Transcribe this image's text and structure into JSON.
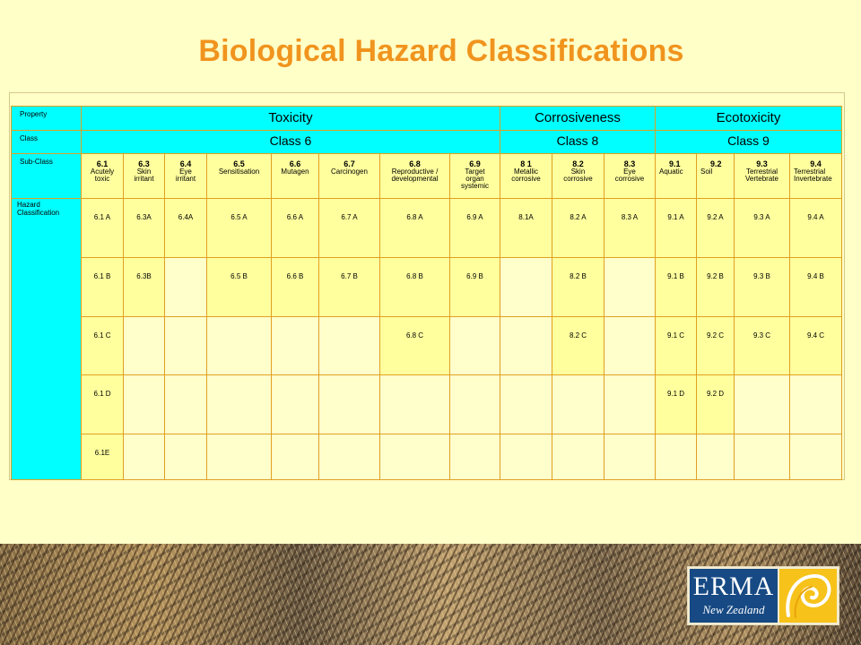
{
  "title": "Biological Hazard Classifications",
  "table": {
    "row_labels": {
      "property": "Property",
      "class": "Class",
      "subclass": "Sub-Class",
      "hazard": "Hazard\nClassification"
    },
    "groups": {
      "toxicity": "Toxicity",
      "corrosiveness": "Corrosiveness",
      "ecotoxicity": "Ecotoxicity"
    },
    "classes": {
      "class6": "Class 6",
      "class8": "Class 8",
      "class9": "Class 9"
    },
    "subclasses": [
      {
        "code": "6.1",
        "name": "Acutely\ntoxic"
      },
      {
        "code": "6.3",
        "name": "Skin\nirritant"
      },
      {
        "code": "6.4",
        "name": "Eye\nirritant"
      },
      {
        "code": "6.5",
        "name": "Sensitisation"
      },
      {
        "code": "6.6",
        "name": "Mutagen"
      },
      {
        "code": "6.7",
        "name": "Carcinogen"
      },
      {
        "code": "6.8",
        "name": "Reproductive /\ndevelopmental"
      },
      {
        "code": "6.9",
        "name": "Target\norgan\nsystemic"
      },
      {
        "code": "8 1",
        "name": "Metallic\ncorrosive"
      },
      {
        "code": "8.2",
        "name": "Skin\ncorrosive"
      },
      {
        "code": "8.3",
        "name": "Eye\ncorrosive"
      },
      {
        "code": "9.1",
        "name": "Aquatic"
      },
      {
        "code": "9.2",
        "name": "Soil"
      },
      {
        "code": "9.3",
        "name": "Terrestrial\nVertebrate"
      },
      {
        "code": "9.4",
        "name": "Terrestrial\nInvertebrate"
      }
    ],
    "hazard_rows": [
      [
        "6.1 A",
        "6.3A",
        "6.4A",
        "6.5 A",
        "6.6 A",
        "6.7 A",
        "6.8 A",
        "6.9 A",
        "8.1A",
        "8.2 A",
        "8.3 A",
        "9.1 A",
        "9.2 A",
        "9.3 A",
        "9.4 A"
      ],
      [
        "6.1 B",
        "6.3B",
        "",
        "6.5 B",
        "6.6 B",
        "6.7 B",
        "6.8 B",
        "6.9 B",
        "",
        "8.2 B",
        "",
        "9.1 B",
        "9.2 B",
        "9.3 B",
        "9.4 B"
      ],
      [
        "6.1 C",
        "",
        "",
        "",
        "",
        "",
        "6.8 C",
        "",
        "",
        "8.2 C",
        "",
        "9.1 C",
        "9.2 C",
        "9.3 C",
        "9.4 C"
      ],
      [
        "6.1 D",
        "",
        "",
        "",
        "",
        "",
        "",
        "",
        "",
        "",
        "",
        "9.1 D",
        "9.2 D",
        "",
        ""
      ],
      [
        "6.1E",
        "",
        "",
        "",
        "",
        "",
        "",
        "",
        "",
        "",
        "",
        "",
        "",
        "",
        ""
      ]
    ]
  },
  "logo": {
    "word": "ERMA",
    "sub": "New Zealand"
  },
  "colors": {
    "background": "#ffffc8",
    "title": "#f0941e",
    "header": "#00ffff",
    "cell_filled": "#ffff9e",
    "cell_empty": "#ffffcc",
    "border": "#e0a020",
    "logo_blue": "#174a84",
    "logo_gold": "#f7c21a"
  }
}
